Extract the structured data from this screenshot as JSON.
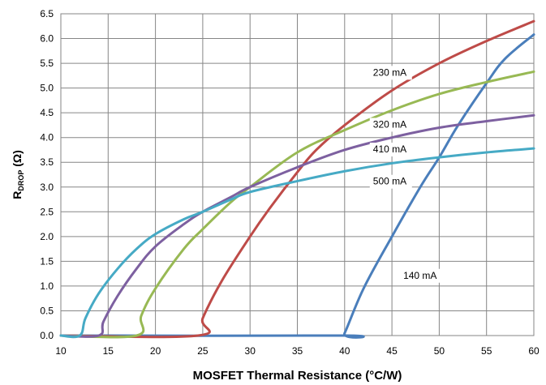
{
  "chart_data": {
    "type": "line",
    "title": "",
    "xlabel": "MOSFET Thermal Resistance (°C/W)",
    "ylabel_main": "R",
    "ylabel_sub": "DROP",
    "ylabel_unit": " (Ω)",
    "xlim": [
      10,
      60
    ],
    "ylim": [
      0,
      6.5
    ],
    "xticks": [
      10,
      15,
      20,
      25,
      30,
      35,
      40,
      45,
      50,
      55,
      60
    ],
    "xtick_labels": [
      "10",
      "15",
      "20",
      "25",
      "30",
      "35",
      "40",
      "45",
      "50",
      "55",
      "60"
    ],
    "yticks": [
      0,
      0.5,
      1,
      1.5,
      2,
      2.5,
      3,
      3.5,
      4,
      4.5,
      5,
      5.5,
      6,
      6.5
    ],
    "ytick_labels": [
      "0.0",
      "0.5",
      "1.0",
      "1.5",
      "2.0",
      "2.5",
      "3.0",
      "3.5",
      "4.0",
      "4.5",
      "5.0",
      "5.5",
      "6.0",
      "6.5"
    ],
    "grid": true,
    "legend": "none",
    "series": [
      {
        "name": "140 mA",
        "color": "#4a7ebb",
        "label_at": [
          46.2,
          1.15
        ],
        "x": [
          10,
          39.6,
          40,
          42,
          45,
          48,
          50,
          52,
          55,
          57,
          60
        ],
        "y": [
          0,
          0,
          0.05,
          0.95,
          2.0,
          3.0,
          3.6,
          4.25,
          5.1,
          5.6,
          6.08
        ]
      },
      {
        "name": "230 mA",
        "color": "#be4b48",
        "label_at": [
          43,
          5.25
        ],
        "x": [
          10,
          24.5,
          25,
          27,
          30,
          32,
          35,
          37,
          40,
          45,
          50,
          55,
          60
        ],
        "y": [
          0,
          0,
          0.35,
          1.1,
          2.0,
          2.55,
          3.3,
          3.75,
          4.25,
          4.95,
          5.5,
          5.95,
          6.35
        ]
      },
      {
        "name": "320 mA",
        "color": "#98b954",
        "label_at": [
          43,
          4.2
        ],
        "x": [
          10,
          18.0,
          18.5,
          20,
          23,
          25,
          28,
          30,
          35,
          40,
          45,
          50,
          55,
          60
        ],
        "y": [
          0,
          0,
          0.4,
          0.95,
          1.75,
          2.15,
          2.7,
          3.0,
          3.7,
          4.15,
          4.55,
          4.88,
          5.12,
          5.33
        ]
      },
      {
        "name": "410 mA",
        "color": "#7d60a0",
        "label_at": [
          43,
          3.7
        ],
        "x": [
          10,
          14.0,
          14.5,
          16,
          18,
          20,
          23,
          25,
          28,
          30,
          35,
          40,
          45,
          50,
          55,
          60
        ],
        "y": [
          0,
          0,
          0.28,
          0.8,
          1.35,
          1.8,
          2.25,
          2.5,
          2.8,
          3.0,
          3.4,
          3.75,
          4.0,
          4.2,
          4.33,
          4.45
        ]
      },
      {
        "name": "500 mA",
        "color": "#46aac5",
        "label_at": [
          43,
          3.05
        ],
        "x": [
          10,
          12.0,
          12.6,
          14,
          16,
          18,
          20,
          23,
          25,
          28,
          30,
          35,
          40,
          45,
          50,
          55,
          60
        ],
        "y": [
          0,
          0,
          0.35,
          0.85,
          1.35,
          1.75,
          2.05,
          2.35,
          2.5,
          2.75,
          2.9,
          3.12,
          3.32,
          3.48,
          3.6,
          3.7,
          3.78
        ]
      }
    ]
  }
}
